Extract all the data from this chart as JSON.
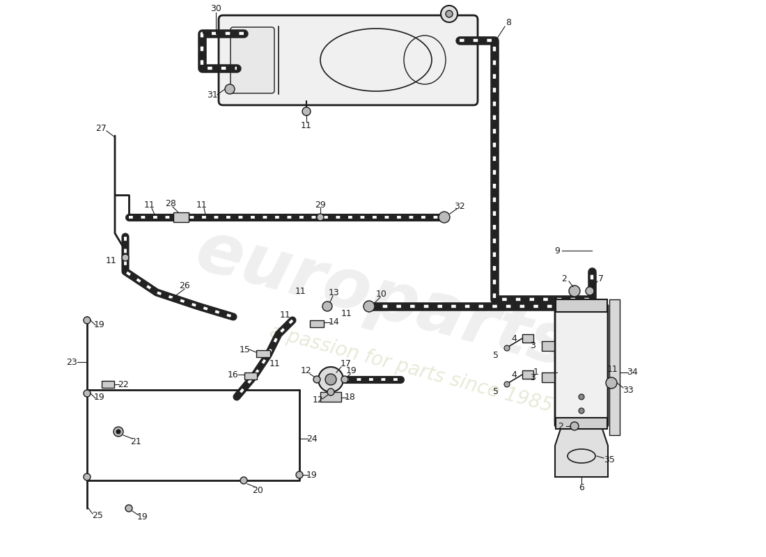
{
  "bg_color": "#ffffff",
  "line_color": "#1a1a1a",
  "watermark1": "europarts",
  "watermark2": "a passion for parts since 1985",
  "fig_width": 11.0,
  "fig_height": 8.0,
  "dpi": 100
}
